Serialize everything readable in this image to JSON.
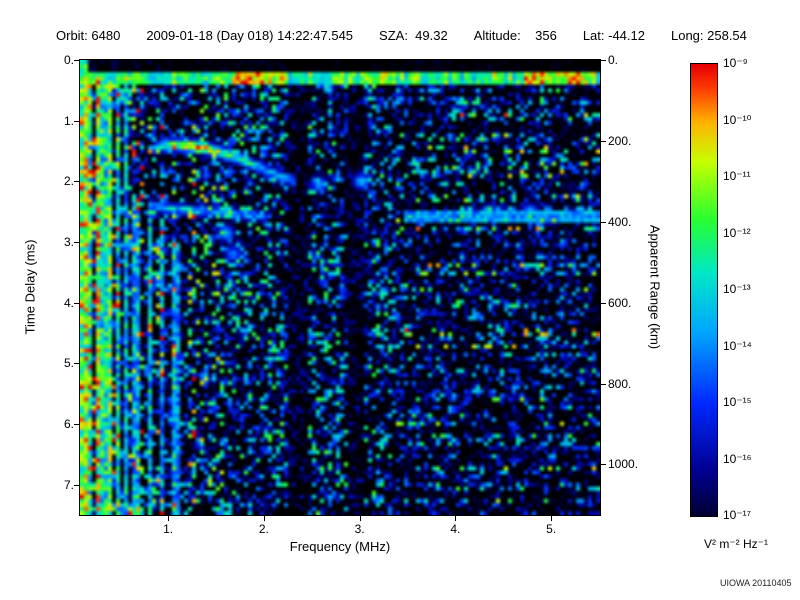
{
  "header": {
    "items": [
      "Orbit: 6480",
      "2009-01-18 (Day 018) 14:22:47.545",
      "SZA:  49.32",
      "Altitude:    356",
      "Lat: -44.12",
      "Long: 258.54"
    ]
  },
  "chart_data": {
    "type": "heatmap",
    "xlabel": "Frequency (MHz)",
    "ylabel_left": "Time Delay (ms)",
    "ylabel_right": "Apparent Range (km)",
    "xlim": [
      0.08,
      5.51
    ],
    "ylim_ms": [
      0,
      7.5
    ],
    "km_per_ms": 150,
    "x_ticks": [
      {
        "value": 1,
        "label": "1."
      },
      {
        "value": 2,
        "label": "2."
      },
      {
        "value": 3,
        "label": "3."
      },
      {
        "value": 4,
        "label": "4."
      },
      {
        "value": 5,
        "label": "5."
      }
    ],
    "y_ticks_ms": [
      {
        "value": 0,
        "label": "0."
      },
      {
        "value": 1,
        "label": "1."
      },
      {
        "value": 2,
        "label": "2."
      },
      {
        "value": 3,
        "label": "3."
      },
      {
        "value": 4,
        "label": "4."
      },
      {
        "value": 5,
        "label": "5."
      },
      {
        "value": 6,
        "label": "6."
      },
      {
        "value": 7,
        "label": "7."
      }
    ],
    "right_ticks_km": [
      {
        "value": 0,
        "label": "0."
      },
      {
        "value": 200,
        "label": "200."
      },
      {
        "value": 400,
        "label": "400."
      },
      {
        "value": 600,
        "label": "600."
      },
      {
        "value": 800,
        "label": "800."
      },
      {
        "value": 1000,
        "label": "1000."
      }
    ],
    "colorbar": {
      "tick_labels": [
        "10⁻⁹",
        "10⁻¹⁰",
        "10⁻¹¹",
        "10⁻¹²",
        "10⁻¹³",
        "10⁻¹⁴",
        "10⁻¹⁵",
        "10⁻¹⁶",
        "10⁻¹⁷"
      ],
      "max": "10⁻⁹",
      "min": "10⁻¹⁷",
      "unit": "V² m⁻² Hz⁻¹"
    },
    "colormap_stops": [
      [
        0.0,
        "#000000"
      ],
      [
        0.06,
        "#000028"
      ],
      [
        0.16,
        "#000090"
      ],
      [
        0.3,
        "#0028ff"
      ],
      [
        0.45,
        "#00a8ff"
      ],
      [
        0.57,
        "#00e8c8"
      ],
      [
        0.68,
        "#28ff30"
      ],
      [
        0.8,
        "#c8ff00"
      ],
      [
        0.88,
        "#ffb400"
      ],
      [
        0.95,
        "#ff3c00"
      ],
      [
        1.0,
        "#e80000"
      ]
    ],
    "features": {
      "surface_line_ms": 0.32,
      "echo_trace_1": [
        [
          0.85,
          1.45,
          0.5
        ],
        [
          1.05,
          1.4,
          0.75
        ],
        [
          1.3,
          1.42,
          0.95
        ],
        [
          1.55,
          1.52,
          0.8
        ],
        [
          1.8,
          1.66,
          0.62
        ],
        [
          2.05,
          1.84,
          0.52
        ],
        [
          2.35,
          2.02,
          0.45
        ]
      ],
      "echo_trace_2": [
        [
          0.8,
          2.4,
          0.5
        ],
        [
          1.1,
          2.46,
          0.6
        ],
        [
          1.5,
          2.5,
          0.55
        ],
        [
          1.85,
          2.55,
          0.5
        ],
        [
          2.05,
          2.6,
          0.42
        ]
      ],
      "right_streak": {
        "delay_ms": 2.55,
        "f_start": 3.45,
        "intensity": 0.45
      },
      "blobs": [
        [
          3.02,
          2.0,
          0.5
        ],
        [
          2.58,
          2.05,
          0.45
        ],
        [
          1.6,
          2.85,
          0.5
        ],
        [
          1.68,
          3.2,
          0.42
        ],
        [
          4.35,
          2.52,
          0.55
        ],
        [
          4.78,
          2.5,
          0.5
        ]
      ],
      "stripes": [
        [
          0.14,
          0.025,
          0.9,
          0.25,
          7.5
        ],
        [
          0.2,
          0.025,
          0.75,
          0.25,
          7.5
        ],
        [
          0.26,
          0.025,
          0.9,
          0.25,
          7.5
        ],
        [
          0.33,
          0.025,
          0.7,
          0.25,
          7.5
        ],
        [
          0.4,
          0.025,
          0.8,
          0.25,
          7.5
        ],
        [
          0.48,
          0.025,
          0.65,
          0.25,
          7.5
        ],
        [
          0.56,
          0.025,
          0.6,
          0.25,
          7.5
        ],
        [
          0.66,
          0.028,
          0.55,
          2.3,
          7.5
        ],
        [
          0.8,
          0.028,
          0.6,
          2.5,
          7.5
        ],
        [
          0.95,
          0.028,
          0.55,
          2.7,
          7.5
        ],
        [
          1.08,
          0.025,
          0.5,
          3.0,
          7.5
        ]
      ]
    }
  },
  "footer": {
    "watermark": "UIOWA 20110405"
  }
}
